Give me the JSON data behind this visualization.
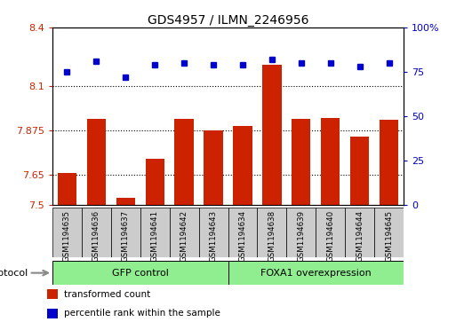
{
  "title": "GDS4957 / ILMN_2246956",
  "samples": [
    "GSM1194635",
    "GSM1194636",
    "GSM1194637",
    "GSM1194641",
    "GSM1194642",
    "GSM1194643",
    "GSM1194634",
    "GSM1194638",
    "GSM1194639",
    "GSM1194640",
    "GSM1194644",
    "GSM1194645"
  ],
  "bar_values": [
    7.66,
    7.935,
    7.535,
    7.73,
    7.935,
    7.875,
    7.9,
    8.21,
    7.935,
    7.94,
    7.845,
    7.93
  ],
  "dot_values": [
    75,
    81,
    72,
    79,
    80,
    79,
    79,
    82,
    80,
    80,
    78,
    80
  ],
  "bar_color": "#cc2200",
  "dot_color": "#0000cc",
  "ylim_left": [
    7.5,
    8.4
  ],
  "ylim_right": [
    0,
    100
  ],
  "yticks_left": [
    7.5,
    7.65,
    7.875,
    8.1,
    8.4
  ],
  "ytick_labels_left": [
    "7.5",
    "7.65",
    "7.875",
    "8.1",
    "8.4"
  ],
  "yticks_right": [
    0,
    25,
    50,
    75,
    100
  ],
  "ytick_labels_right": [
    "0",
    "25",
    "50",
    "75",
    "100%"
  ],
  "grid_lines": [
    7.65,
    7.875,
    8.1
  ],
  "group1_label": "GFP control",
  "group2_label": "FOXA1 overexpression",
  "group1_count": 6,
  "group2_count": 6,
  "protocol_label": "protocol",
  "legend_bar_label": "transformed count",
  "legend_dot_label": "percentile rank within the sample",
  "bar_width": 0.65,
  "background_color": "#ffffff",
  "plot_bg_color": "#ffffff",
  "tick_label_area_color": "#cccccc",
  "group_box_color": "#90ee90",
  "title_fontsize": 10,
  "axis_fontsize": 8
}
